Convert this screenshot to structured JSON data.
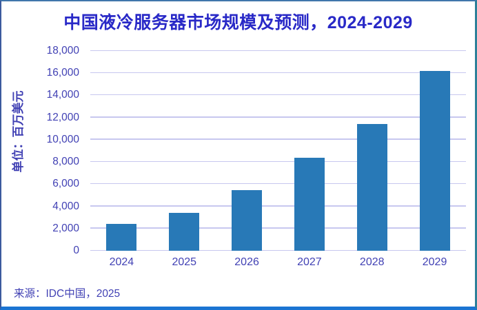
{
  "chart_data": {
    "type": "bar",
    "title": "中国液冷服务器市场规模及预测，2024-2029",
    "ylabel": "单位：百万美元",
    "xlabel": "",
    "categories": [
      "2024",
      "2025",
      "2026",
      "2027",
      "2028",
      "2029"
    ],
    "values": [
      2400,
      3400,
      5450,
      8400,
      11450,
      16200
    ],
    "ylim": [
      0,
      18000
    ],
    "ytick_step": 2000,
    "ytick_labels": [
      "0",
      "2,000",
      "4,000",
      "6,000",
      "8,000",
      "10,000",
      "12,000",
      "14,000",
      "16,000",
      "18,000"
    ],
    "grid": "horizontal",
    "legend": "none",
    "source": "来源：IDC中国，2025",
    "colors": {
      "bar": "#2879b7",
      "gridline": "#c7c7ef",
      "text": "#4141b4",
      "title": "#2929c7",
      "bottom_border": "#1a74d2"
    }
  }
}
